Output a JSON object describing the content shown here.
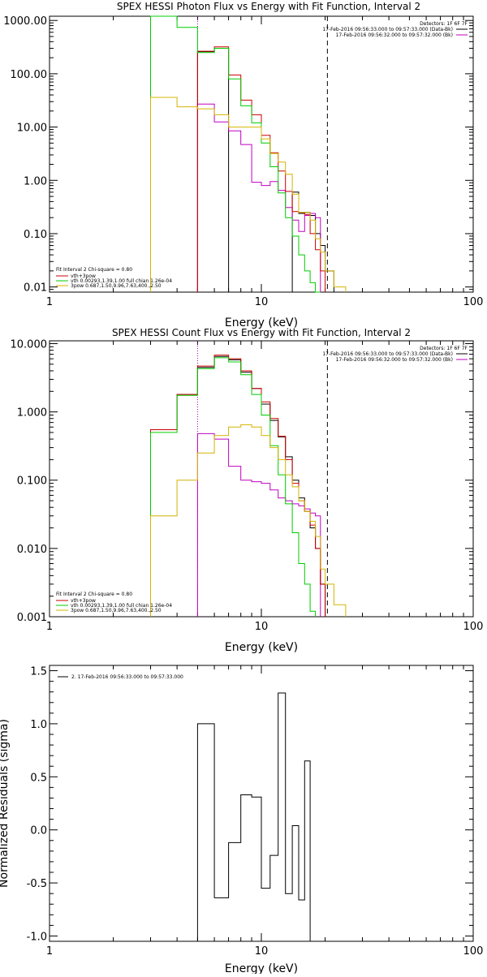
{
  "chart_data": [
    {
      "type": "line",
      "title": "SPEX HESSI Photon Flux vs Energy with Fit Function, Interval 2",
      "xlabel": "Energy (keV)",
      "ylabel": "",
      "xscale": "log",
      "yscale": "log",
      "xlim": [
        1,
        100
      ],
      "ylim": [
        0.008,
        1200
      ],
      "x_ticks": [
        "1",
        "10",
        "100"
      ],
      "y_ticks": [
        "0.01",
        "0.10",
        "1.00",
        "10.00",
        "100.00",
        "1000.00"
      ],
      "y_tick_values": [
        0.01,
        0.1,
        1,
        10,
        100,
        1000
      ],
      "vlines": [
        {
          "x": 5.0,
          "style": "dotted",
          "color": "#a000a0"
        },
        {
          "x": 20.5,
          "style": "dashed",
          "color": "#000000"
        }
      ],
      "header": [
        "Detectors: 1F 6F 7F",
        "17-Feb-2016 09:56:33.000 to 09:57:33.000 (Data-Bk)",
        "17-Feb-2016 09:56:32.000 to 09:57:32.000 (Bk)"
      ],
      "header_colors": [
        "#000000",
        "#000000",
        "#c000c0"
      ],
      "legend_title": "Fit Interval 2   Chi-square = 0.80",
      "legend": [
        {
          "label": "vth+3pow",
          "color": "#cc0000"
        },
        {
          "label": "vth 0.00293,1.39,1.00  full chian 1.26e-04",
          "color": "#00cc00"
        },
        {
          "label": "3pow 0.687,1.50,9.96,7.63,400.,2.50",
          "color": "#d4b400"
        }
      ],
      "bin_edges": [
        3,
        4,
        5,
        6,
        7,
        8,
        9,
        10,
        11,
        12,
        13,
        14,
        15,
        16,
        17,
        18,
        19,
        20,
        22,
        25
      ],
      "series": [
        {
          "name": "Data-Bk",
          "color": "#000000",
          "values": [
            null,
            null,
            260,
            300,
            null,
            null,
            null,
            null,
            null,
            null,
            null,
            0.6,
            0.24,
            0.25,
            0.22,
            0.1,
            0.06,
            0.02,
            null
          ]
        },
        {
          "name": "Bk",
          "color": "#c000c0",
          "values": [
            null,
            null,
            27,
            12.5,
            8.5,
            4.7,
            0.92,
            0.8,
            0.95,
            0.65,
            0.31,
            0.18,
            0.11,
            0.22,
            0.24,
            0.2,
            null,
            null,
            null
          ]
        },
        {
          "name": "vth+3pow",
          "color": "#cc0000",
          "values": [
            null,
            null,
            265,
            320,
            95,
            32,
            17,
            7,
            3.3,
            1.5,
            0.62,
            0.26,
            0.25,
            0.23,
            0.1,
            0.05,
            0.02,
            null,
            null
          ]
        },
        {
          "name": "vth",
          "color": "#00cc00",
          "values": [
            2000,
            740,
            250,
            300,
            80,
            25,
            12,
            5,
            1.8,
            0.58,
            0.2,
            0.09,
            0.04,
            0.02,
            0.012,
            0.005,
            null,
            null,
            null
          ]
        },
        {
          "name": "3pow",
          "color": "#d4b400",
          "values": [
            36,
            24,
            22,
            17,
            10,
            10,
            10,
            6,
            3.2,
            2.2,
            1.3,
            0.55,
            0.25,
            0.25,
            0.18,
            0.08,
            0.045,
            0.02,
            0.01
          ]
        }
      ]
    },
    {
      "type": "line",
      "title": "SPEX HESSI Count Flux vs Energy with Fit Function, Interval 2",
      "xlabel": "Energy (keV)",
      "ylabel": "",
      "xscale": "log",
      "yscale": "log",
      "xlim": [
        1,
        100
      ],
      "ylim": [
        0.001,
        11
      ],
      "x_ticks": [
        "1",
        "10",
        "100"
      ],
      "y_ticks": [
        "0.001",
        "0.010",
        "0.100",
        "1.000",
        "10.000"
      ],
      "y_tick_values": [
        0.001,
        0.01,
        0.1,
        1,
        10
      ],
      "vlines": [
        {
          "x": 5.0,
          "style": "dotted",
          "color": "#a000a0"
        },
        {
          "x": 20.5,
          "style": "dashed",
          "color": "#000000"
        }
      ],
      "header": [
        "Detectors: 1F 6F 7F",
        "17-Feb-2016 09:56:33.000 to 09:57:33.000 (Data-Bk)",
        "17-Feb-2016 09:56:32.000 to 09:57:32.000 (Bk)"
      ],
      "header_colors": [
        "#000000",
        "#000000",
        "#c000c0"
      ],
      "legend_title": "Fit Interval 2   Chi-square = 0.80",
      "legend": [
        {
          "label": "vth+3pow",
          "color": "#cc0000"
        },
        {
          "label": "vth 0.00293,1.39,1.00  full chian 1.26e-04",
          "color": "#00cc00"
        },
        {
          "label": "3pow 0.687,1.50,9.96,7.63,400.,2.50",
          "color": "#d4b400"
        }
      ],
      "bin_edges": [
        3,
        4,
        5,
        6,
        7,
        8,
        9,
        10,
        11,
        12,
        13,
        14,
        15,
        16,
        17,
        18,
        19,
        20,
        22,
        25
      ],
      "series": [
        {
          "name": "Data-Bk",
          "color": "#000000",
          "values": [
            0.55,
            1.8,
            4.5,
            6.5,
            5.8,
            3.8,
            2.2,
            1.3,
            0.75,
            0.43,
            0.22,
            0.1,
            0.055,
            0.035,
            0.02,
            0.01,
            0.003,
            null,
            null
          ]
        },
        {
          "name": "Bk",
          "color": "#c000c0",
          "values": [
            null,
            null,
            0.48,
            0.4,
            0.16,
            0.1,
            0.095,
            0.09,
            0.072,
            0.055,
            0.05,
            0.045,
            0.042,
            0.038,
            0.033,
            0.03,
            null,
            null,
            null
          ]
        },
        {
          "name": "vth+3pow",
          "color": "#cc0000",
          "values": [
            0.55,
            1.8,
            4.7,
            6.8,
            6.0,
            4.0,
            2.2,
            1.4,
            0.8,
            0.44,
            0.2,
            0.09,
            0.05,
            0.035,
            0.022,
            0.01,
            0.003,
            null,
            null
          ]
        },
        {
          "name": "vth",
          "color": "#00cc00",
          "values": [
            0.5,
            1.75,
            4.3,
            6.2,
            5.4,
            3.5,
            1.8,
            0.9,
            0.32,
            0.12,
            0.045,
            0.017,
            0.006,
            0.003,
            0.0012,
            null,
            null,
            null,
            null
          ]
        },
        {
          "name": "3pow",
          "color": "#d4b400",
          "values": [
            0.03,
            0.1,
            0.25,
            0.45,
            0.6,
            0.65,
            0.6,
            0.45,
            0.3,
            0.2,
            0.12,
            0.08,
            0.05,
            0.035,
            0.025,
            0.015,
            0.005,
            0.003,
            0.0015
          ]
        }
      ]
    },
    {
      "type": "line",
      "title": "",
      "xlabel": "Energy (keV)",
      "ylabel": "Normalized Residuals (sigma)",
      "xscale": "log",
      "yscale": "linear",
      "xlim": [
        1,
        100
      ],
      "ylim": [
        -1.05,
        1.55
      ],
      "x_ticks": [
        "1",
        "10",
        "100"
      ],
      "y_ticks": [
        "-1.0",
        "-0.5",
        "0.0",
        "0.5",
        "1.0",
        "1.5"
      ],
      "y_tick_values": [
        -1.0,
        -0.5,
        0.0,
        0.5,
        1.0,
        1.5
      ],
      "legend": [
        {
          "label": "2. 17-Feb-2016 09:56:33.000 to 09:57:33.000",
          "color": "#000000"
        }
      ],
      "bin_edges": [
        5,
        6,
        7,
        8,
        9,
        10,
        11,
        12,
        13,
        14,
        15,
        16,
        17,
        18,
        19,
        20
      ],
      "series": [
        {
          "name": "",
          "color": "#000000",
          "values": [
            1.0,
            -0.64,
            -0.12,
            0.33,
            0.31,
            -0.55,
            -0.24,
            1.29,
            -0.6,
            0.04,
            -0.66,
            0.65,
            null,
            null,
            null
          ]
        }
      ]
    }
  ]
}
